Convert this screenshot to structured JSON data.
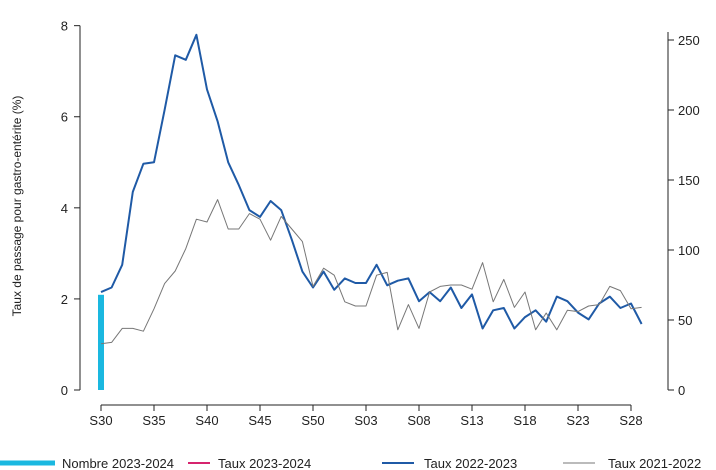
{
  "chart_data": {
    "type": "line",
    "title": "",
    "ylabel": "Taux de passage pour gastro-entérite (%)",
    "ylabel_right": "",
    "ylim": [
      0,
      8.3
    ],
    "ylim_right": [
      0,
      270
    ],
    "y_ticks": [
      0,
      2,
      4,
      6,
      8
    ],
    "y_right_ticks": [
      0,
      50,
      100,
      150,
      200,
      250
    ],
    "x_tick_labels": [
      "S30",
      "S35",
      "S40",
      "S45",
      "S50",
      "S03",
      "S08",
      "S13",
      "S18",
      "S23",
      "S28"
    ],
    "x_tick_positions": [
      0,
      5,
      10,
      15,
      20,
      25,
      30,
      35,
      40,
      45,
      50
    ],
    "grid": false,
    "legend_position": "bottom",
    "colors": {
      "nombre_2023_2024": "#1ab8e0",
      "taux_2023_2024": "#d6246e",
      "taux_2022_2023": "#1f5aa6",
      "taux_2021_2022": "#777777"
    },
    "series": [
      {
        "name": "Nombre 2023-2024",
        "type": "bar",
        "axis": "right",
        "x": [
          0
        ],
        "values": [
          68
        ]
      },
      {
        "name": "Taux 2023-2024",
        "type": "line",
        "axis": "left",
        "x": [],
        "values": []
      },
      {
        "name": "Taux 2022-2023",
        "type": "line",
        "axis": "left",
        "values": [
          2.15,
          2.25,
          2.75,
          4.35,
          4.97,
          5.0,
          6.15,
          7.35,
          7.25,
          7.8,
          6.6,
          5.9,
          5.0,
          4.5,
          3.95,
          3.8,
          4.15,
          3.95,
          3.3,
          2.6,
          2.25,
          2.6,
          2.2,
          2.45,
          2.35,
          2.35,
          2.75,
          2.3,
          2.4,
          2.45,
          1.95,
          2.15,
          1.95,
          2.25,
          1.8,
          2.1,
          1.35,
          1.75,
          1.8,
          1.35,
          1.6,
          1.75,
          1.5,
          2.05,
          1.95,
          1.7,
          1.55,
          1.9,
          2.05,
          1.8,
          1.9,
          1.45
        ]
      },
      {
        "name": "Taux 2021-2022",
        "type": "line",
        "axis": "right",
        "values": [
          33,
          34,
          44,
          44,
          42,
          58,
          76,
          85,
          101,
          122,
          120,
          136,
          115,
          115,
          126,
          122,
          107,
          124,
          115,
          106,
          74,
          87,
          82,
          63,
          60,
          60,
          82,
          84,
          43,
          61,
          44,
          70,
          74,
          75,
          75,
          72,
          91,
          63,
          79,
          59,
          70,
          43,
          55,
          43,
          57,
          56,
          60,
          61,
          74,
          71,
          58,
          59
        ]
      }
    ]
  }
}
